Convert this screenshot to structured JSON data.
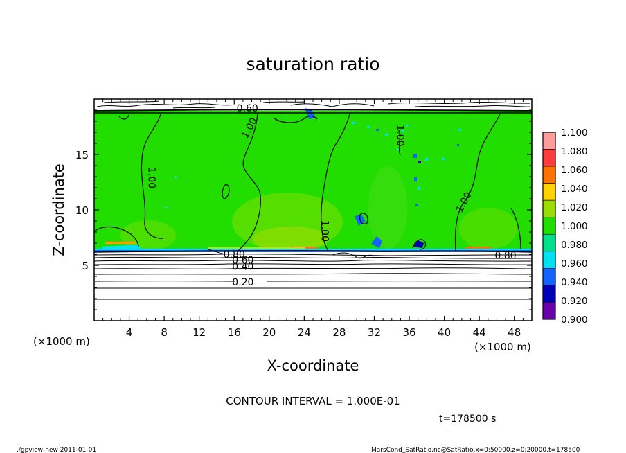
{
  "chart_data": {
    "type": "heatmap",
    "title": "saturation ratio",
    "xlabel": "X-coordinate",
    "ylabel": "Z-coordinate",
    "x_unit_note": "(×1000 m)",
    "y_unit_note": "(×1000 m)",
    "xlim": [
      0,
      50
    ],
    "ylim": [
      0,
      20
    ],
    "x_ticks": [
      4,
      8,
      12,
      16,
      20,
      24,
      28,
      32,
      36,
      40,
      44,
      48
    ],
    "y_ticks": [
      5,
      10,
      15
    ],
    "colorbar": {
      "levels": [
        "1.100",
        "1.080",
        "1.060",
        "1.040",
        "1.020",
        "1.000",
        "0.980",
        "0.960",
        "0.940",
        "0.920",
        "0.900"
      ],
      "colors": [
        "#ff9d9d",
        "#ff3c3c",
        "#ff7300",
        "#ffd200",
        "#9bdd00",
        "#22dd00",
        "#00e08c",
        "#00e2f4",
        "#1464ff",
        "#0000b4",
        "#6a00aa"
      ]
    },
    "contour_labels": [
      {
        "text": "0.60",
        "x": 17.5,
        "z": 19.2
      },
      {
        "text": "1.00",
        "x": 17.7,
        "z": 17.4
      },
      {
        "text": "1.00",
        "x": 6.6,
        "z": 12.9
      },
      {
        "text": "1.00",
        "x": 35.0,
        "z": 16.7
      },
      {
        "text": "1.00",
        "x": 26.4,
        "z": 8.1
      },
      {
        "text": "1.00",
        "x": 42.2,
        "z": 10.7
      },
      {
        "text": "0.80",
        "x": 16.0,
        "z": 6.0
      },
      {
        "text": "0.60",
        "x": 17.0,
        "z": 5.5
      },
      {
        "text": "0.40",
        "x": 17.0,
        "z": 4.9
      },
      {
        "text": "0.20",
        "x": 17.0,
        "z": 3.5
      },
      {
        "text": "0.80",
        "x": 47.0,
        "z": 5.9
      }
    ],
    "contour_interval_text": "CONTOUR INTERVAL = 1.000E-01",
    "time_text": "t=178500 s"
  },
  "footer": {
    "left": "./gpview-new  2011-01-01",
    "right": "MarsCond_SatRatio.nc@SatRatio,x=0:50000,z=0:20000,t=178500"
  }
}
